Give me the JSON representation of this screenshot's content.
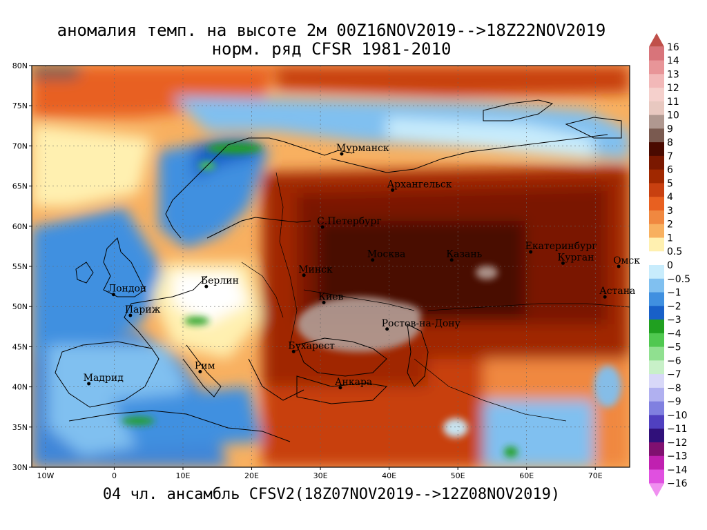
{
  "title": {
    "line1": "аномалия темп. на высоте 2м 00Z16NOV2019-->18Z22NOV2019",
    "line2": "норм. ряд CFSR 1981-2010"
  },
  "footer": "04 чл. ансамбль CFSV2(18Z07NOV2019-->12Z08NOV2019)",
  "map": {
    "lon_range": [
      -12,
      75
    ],
    "lat_range": [
      30,
      80
    ],
    "lat_ticks": [
      "80N",
      "75N",
      "70N",
      "65N",
      "60N",
      "55N",
      "50N",
      "45N",
      "40N",
      "35N",
      "30N"
    ],
    "lat_tick_values": [
      80,
      75,
      70,
      65,
      60,
      55,
      50,
      45,
      40,
      35,
      30
    ],
    "lon_ticks": [
      "10W",
      "0",
      "10E",
      "20E",
      "30E",
      "40E",
      "50E",
      "60E",
      "70E"
    ],
    "lon_tick_values": [
      -10,
      0,
      10,
      20,
      30,
      40,
      50,
      60,
      70
    ]
  },
  "cities": [
    {
      "name": "Мурманск",
      "lon": 33.1,
      "lat": 69.0
    },
    {
      "name": "Архангельск",
      "lon": 40.5,
      "lat": 64.5
    },
    {
      "name": "С.Петербург",
      "lon": 30.3,
      "lat": 59.9
    },
    {
      "name": "Москва",
      "lon": 37.6,
      "lat": 55.8
    },
    {
      "name": "Казань",
      "lon": 49.1,
      "lat": 55.8
    },
    {
      "name": "Екатеринбург",
      "lon": 60.6,
      "lat": 56.8
    },
    {
      "name": "Курган",
      "lon": 65.3,
      "lat": 55.4
    },
    {
      "name": "Омск",
      "lon": 73.4,
      "lat": 55.0
    },
    {
      "name": "Астана",
      "lon": 71.4,
      "lat": 51.2
    },
    {
      "name": "Минск",
      "lon": 27.6,
      "lat": 53.9
    },
    {
      "name": "Киев",
      "lon": 30.5,
      "lat": 50.5
    },
    {
      "name": "Ростов-на-Дону",
      "lon": 39.7,
      "lat": 47.2
    },
    {
      "name": "Бухарест",
      "lon": 26.1,
      "lat": 44.4
    },
    {
      "name": "Анкара",
      "lon": 32.9,
      "lat": 39.9
    },
    {
      "name": "Берлин",
      "lon": 13.4,
      "lat": 52.5
    },
    {
      "name": "Лондон",
      "lon": -0.1,
      "lat": 51.5
    },
    {
      "name": "Париж",
      "lon": 2.35,
      "lat": 48.9
    },
    {
      "name": "Мадрид",
      "lon": -3.7,
      "lat": 40.4
    },
    {
      "name": "Рим",
      "lon": 12.5,
      "lat": 41.9
    }
  ],
  "colorbar": {
    "levels": [
      "16",
      "14",
      "13",
      "12",
      "11",
      "10",
      "9",
      "8",
      "7",
      "6",
      "5",
      "4",
      "3",
      "2",
      "1",
      "0.5",
      "0",
      "−0.5",
      "−1",
      "−2",
      "−3",
      "−4",
      "−5",
      "−6",
      "−7",
      "−8",
      "−9",
      "−10",
      "−11",
      "−12",
      "−13",
      "−14",
      "−16"
    ],
    "colors": [
      "#c0504a",
      "#d8747a",
      "#e89598",
      "#f2b8b8",
      "#f5d0cc",
      "#e8c8c0",
      "#b09890",
      "#7a5a50",
      "#4a0a00",
      "#7a1800",
      "#a02800",
      "#c84010",
      "#e86020",
      "#f08840",
      "#f8b060",
      "#fff0b0",
      "#ffffff",
      "#c8ecfc",
      "#80c0f0",
      "#4090e0",
      "#1860c8",
      "#20a020",
      "#50c850",
      "#90e090",
      "#c8f0c8",
      "#d8d8f8",
      "#b0b0f0",
      "#8080e0",
      "#5040c0",
      "#30107a",
      "#801070",
      "#c020b0",
      "#e050e0",
      "#f090f0"
    ]
  }
}
